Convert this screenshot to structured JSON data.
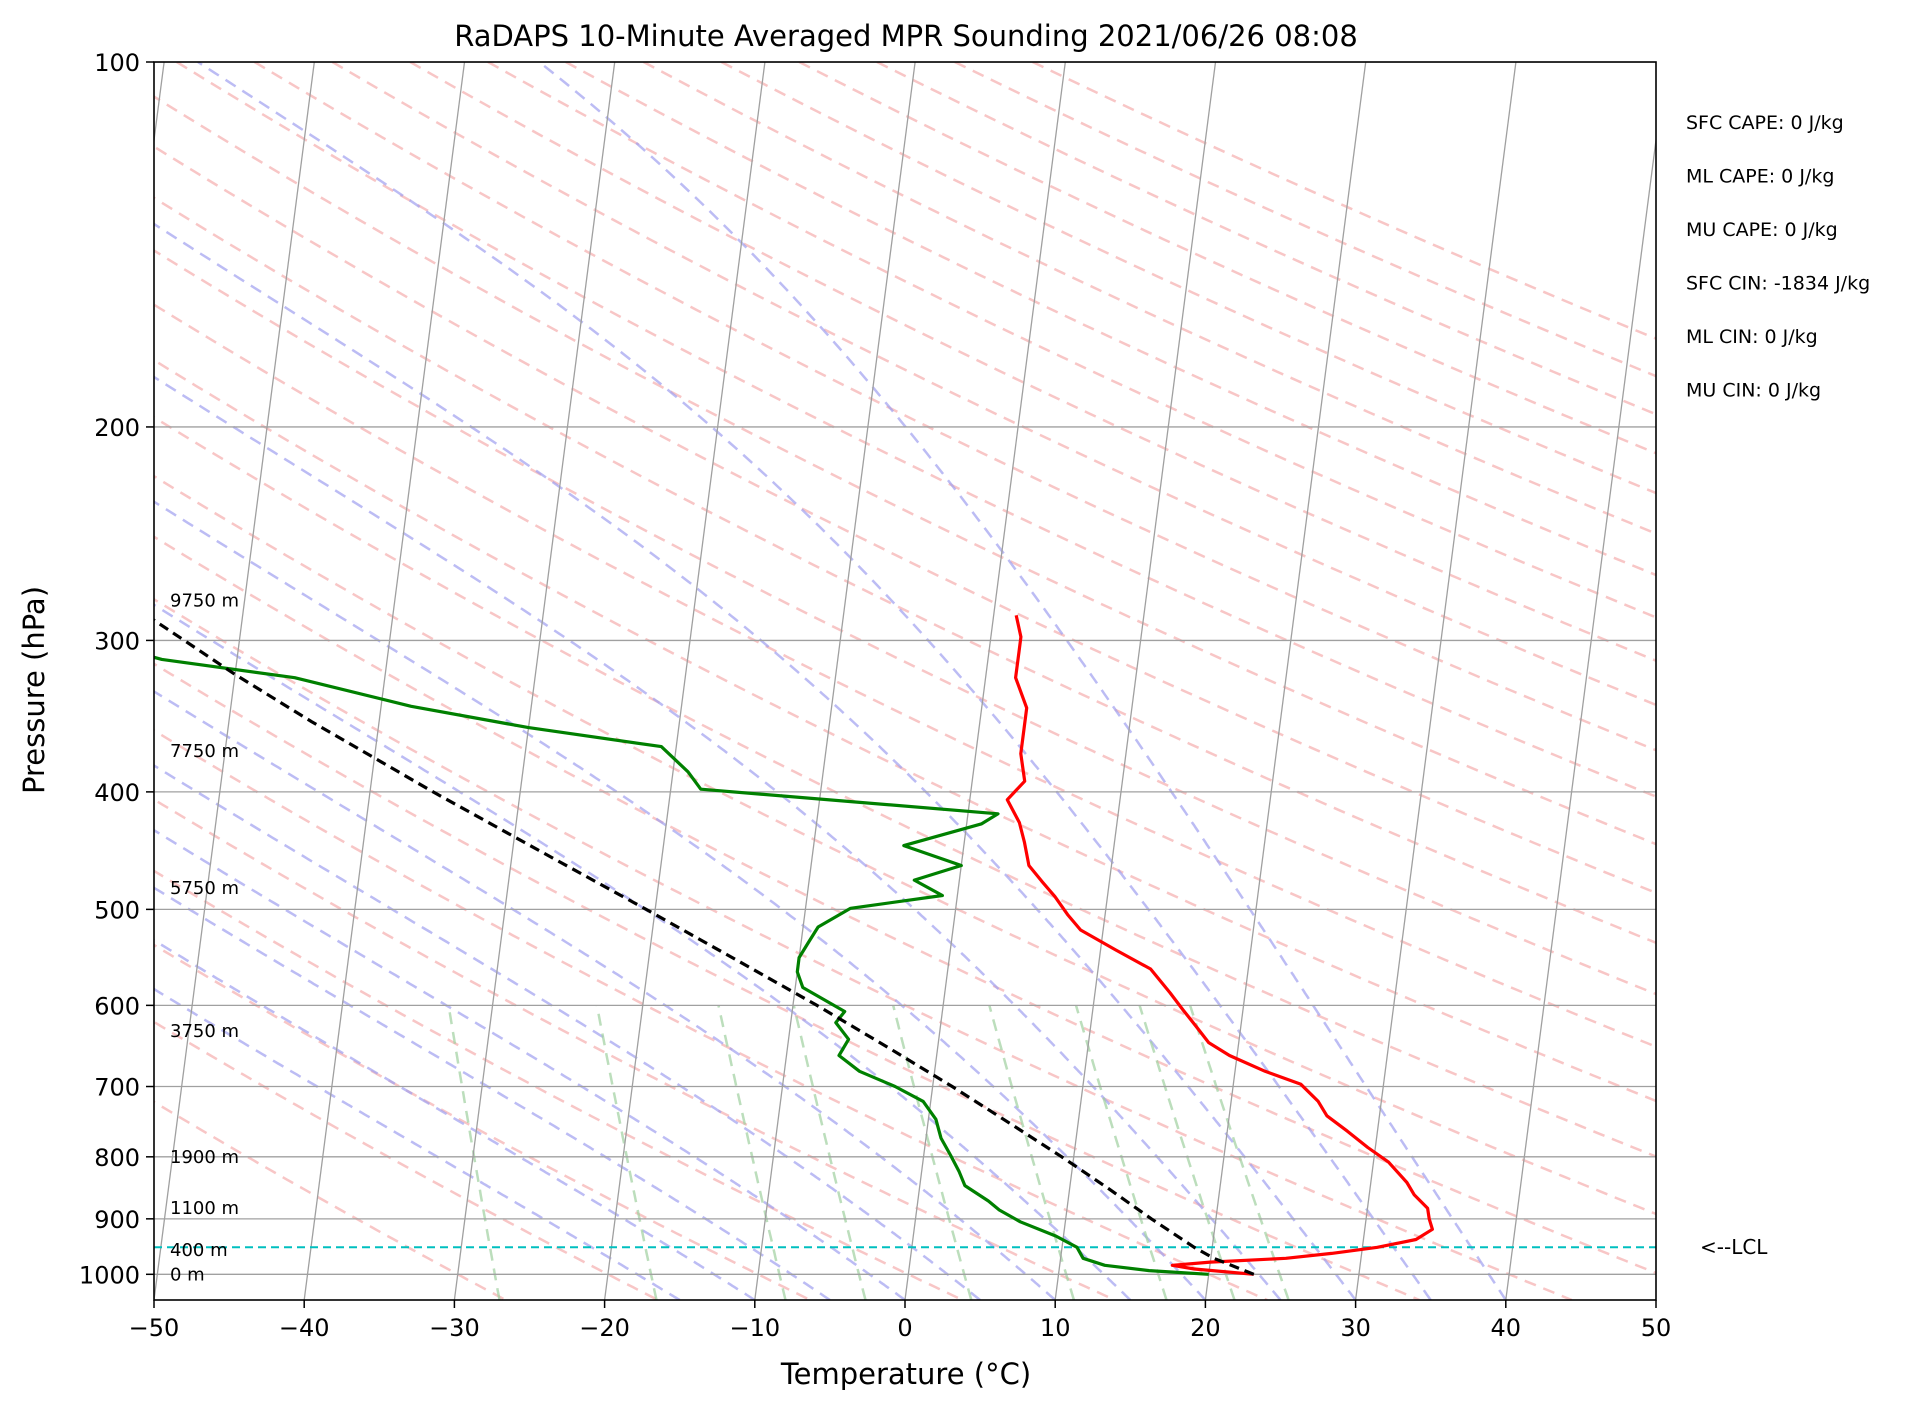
{
  "chart_data": {
    "type": "line",
    "title": "RaDAPS 10-Minute Averaged MPR Sounding 2021/06/26 08:08",
    "xlabel": "Temperature (°C)",
    "ylabel": "Pressure (hPa)",
    "xlim": [
      -50,
      50
    ],
    "ylim": [
      1050,
      100
    ],
    "y_scale": "log",
    "x_ticks": [
      "−50",
      "−40",
      "−30",
      "−20",
      "−10",
      "0",
      "10",
      "20",
      "30",
      "40",
      "50"
    ],
    "x_tick_values": [
      -50,
      -40,
      -30,
      -20,
      -10,
      0,
      10,
      20,
      30,
      40,
      50
    ],
    "y_ticks": [
      "100",
      "200",
      "300",
      "400",
      "500",
      "600",
      "700",
      "800",
      "900",
      "1000"
    ],
    "y_tick_values": [
      100,
      200,
      300,
      400,
      500,
      600,
      700,
      800,
      900,
      1000
    ],
    "grid": true,
    "skew_x": true,
    "colors": {
      "temperature": "#ff0000",
      "dewpoint": "#008000",
      "parcel": "#000000",
      "lcl": "#00bfbf",
      "dry_adiabat": "#f4a0a0",
      "moist_adiabat": "#9f9ff0",
      "mixing_ratio": "#9fd09f",
      "isotherm": "#a0a0a0"
    },
    "series": [
      {
        "key": "temperature",
        "points": [
          [
            1000,
            23.0
          ],
          [
            990,
            19.0
          ],
          [
            983,
            17.5
          ],
          [
            977,
            20.0
          ],
          [
            970,
            25.0
          ],
          [
            961,
            28.0
          ],
          [
            950,
            31.0
          ],
          [
            936,
            33.5
          ],
          [
            918,
            34.5
          ],
          [
            900,
            34.2
          ],
          [
            882,
            34.0
          ],
          [
            860,
            33.0
          ],
          [
            840,
            32.4
          ],
          [
            808,
            31.0
          ],
          [
            786,
            29.5
          ],
          [
            762,
            28.0
          ],
          [
            740,
            26.5
          ],
          [
            720,
            25.8
          ],
          [
            697,
            24.5
          ],
          [
            680,
            22.0
          ],
          [
            660,
            19.5
          ],
          [
            644,
            18.0
          ],
          [
            624,
            17.0
          ],
          [
            605,
            16.0
          ],
          [
            586,
            15.0
          ],
          [
            560,
            13.5
          ],
          [
            540,
            11.0
          ],
          [
            520,
            8.5
          ],
          [
            505,
            7.5
          ],
          [
            488,
            6.5
          ],
          [
            474,
            5.5
          ],
          [
            460,
            4.5
          ],
          [
            440,
            4.0
          ],
          [
            424,
            3.5
          ],
          [
            406,
            2.5
          ],
          [
            392,
            3.5
          ],
          [
            372,
            3.0
          ],
          [
            355,
            3.0
          ],
          [
            341,
            3.0
          ],
          [
            322,
            2.0
          ],
          [
            307,
            2.0
          ],
          [
            298,
            2.0
          ],
          [
            286,
            1.5
          ]
        ]
      },
      {
        "key": "dewpoint",
        "points": [
          [
            1000,
            20.0
          ],
          [
            993,
            16.0
          ],
          [
            983,
            13.0
          ],
          [
            970,
            11.5
          ],
          [
            950,
            11.0
          ],
          [
            930,
            9.5
          ],
          [
            905,
            7.0
          ],
          [
            885,
            5.5
          ],
          [
            870,
            4.7
          ],
          [
            845,
            3.0
          ],
          [
            823,
            2.5
          ],
          [
            798,
            1.8
          ],
          [
            772,
            1.0
          ],
          [
            745,
            0.5
          ],
          [
            720,
            -0.5
          ],
          [
            700,
            -2.5
          ],
          [
            680,
            -5.0
          ],
          [
            660,
            -6.5
          ],
          [
            640,
            -6.0
          ],
          [
            620,
            -7.0
          ],
          [
            607,
            -6.5
          ],
          [
            580,
            -9.5
          ],
          [
            563,
            -10.0
          ],
          [
            548,
            -10.0
          ],
          [
            532,
            -9.5
          ],
          [
            517,
            -9.0
          ],
          [
            499,
            -7.0
          ],
          [
            487,
            -1.0
          ],
          [
            473,
            -3.0
          ],
          [
            460,
            0.0
          ],
          [
            443,
            -4.0
          ],
          [
            425,
            1.0
          ],
          [
            417,
            2.0
          ],
          [
            398,
            -18.0
          ],
          [
            385,
            -19.0
          ],
          [
            367,
            -21.0
          ],
          [
            354,
            -30.0
          ],
          [
            340,
            -38.0
          ],
          [
            322,
            -46.0
          ],
          [
            311,
            -55.0
          ],
          [
            300,
            -60.0
          ],
          [
            290,
            -65.0
          ]
        ]
      },
      {
        "key": "parcel",
        "points": [
          [
            1000,
            23.0
          ],
          [
            970,
            20.2
          ],
          [
            950,
            18.8
          ],
          [
            900,
            15.7
          ],
          [
            850,
            12.6
          ],
          [
            800,
            9.2
          ],
          [
            750,
            5.4
          ],
          [
            700,
            1.3
          ],
          [
            650,
            -3.3
          ],
          [
            600,
            -8.4
          ],
          [
            550,
            -14.2
          ],
          [
            500,
            -20.6
          ],
          [
            450,
            -27.8
          ],
          [
            400,
            -35.8
          ],
          [
            350,
            -44.5
          ],
          [
            320,
            -50.0
          ],
          [
            288,
            -56.0
          ]
        ]
      }
    ],
    "lcl_pressure": 950,
    "lcl_label": "<--LCL",
    "height_labels": [
      {
        "pressure": 1000,
        "text": "0 m"
      },
      {
        "pressure": 955,
        "text": "400 m"
      },
      {
        "pressure": 882,
        "text": "1100 m"
      },
      {
        "pressure": 800,
        "text": "1900 m"
      },
      {
        "pressure": 630,
        "text": "3750 m"
      },
      {
        "pressure": 480,
        "text": "5750 m"
      },
      {
        "pressure": 370,
        "text": "7750 m"
      },
      {
        "pressure": 278,
        "text": "9750 m"
      }
    ],
    "stats": [
      "SFC CAPE: 0 J/kg",
      "ML CAPE: 0 J/kg",
      "MU CAPE: 0 J/kg",
      "SFC CIN: -1834 J/kg",
      "ML CIN: 0 J/kg",
      "MU CIN: 0 J/kg"
    ]
  }
}
